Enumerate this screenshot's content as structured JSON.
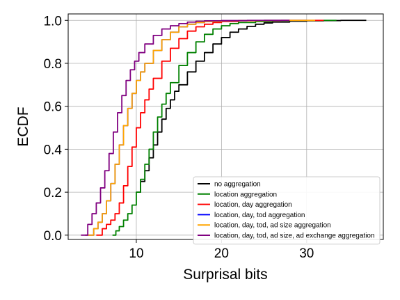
{
  "chart_data": {
    "type": "line",
    "title": "",
    "xlabel": "Surprisal bits",
    "ylabel": "ECDF",
    "xlim": [
      2,
      39
    ],
    "ylim": [
      -0.02,
      1.03
    ],
    "x_ticks": [
      10,
      20,
      30
    ],
    "y_ticks": [
      0.0,
      0.2,
      0.4,
      0.6,
      0.8,
      1.0
    ],
    "x_tick_labels": [
      "10",
      "20",
      "30"
    ],
    "y_tick_labels": [
      "0.0",
      "0.2",
      "0.4",
      "0.6",
      "0.8",
      "1.0"
    ],
    "grid": true,
    "legend_position": "lower-right",
    "series": [
      {
        "name": "no aggregation",
        "color": "#000000",
        "x": [
          10.0,
          10.5,
          11.0,
          11.5,
          12.0,
          12.5,
          13.0,
          13.5,
          14.0,
          14.5,
          15.0,
          16.0,
          17.0,
          18.0,
          19.0,
          20.0,
          21.0,
          22.0,
          23.0,
          24.0,
          25.0,
          26.0,
          28.0,
          30.0,
          32.0,
          34.0,
          36.0,
          37.0
        ],
        "y": [
          0.2,
          0.25,
          0.3,
          0.36,
          0.42,
          0.48,
          0.54,
          0.59,
          0.63,
          0.67,
          0.7,
          0.76,
          0.81,
          0.85,
          0.89,
          0.92,
          0.945,
          0.96,
          0.972,
          0.982,
          0.988,
          0.992,
          0.996,
          0.998,
          0.999,
          1.0,
          1.0,
          1.0
        ]
      },
      {
        "name": "location aggregation",
        "color": "#008000",
        "x": [
          7.2,
          7.6,
          8.0,
          8.5,
          9.0,
          9.5,
          10.0,
          10.5,
          11.0,
          11.5,
          12.0,
          12.5,
          13.0,
          13.5,
          14.0,
          15.0,
          16.0,
          17.0,
          18.0,
          19.0,
          20.0,
          21.0,
          22.0,
          24.0,
          26.0,
          28.0,
          30.0,
          32.0,
          33.5
        ],
        "y": [
          0.0,
          0.02,
          0.04,
          0.07,
          0.1,
          0.14,
          0.2,
          0.26,
          0.33,
          0.4,
          0.48,
          0.55,
          0.61,
          0.66,
          0.71,
          0.79,
          0.85,
          0.9,
          0.935,
          0.96,
          0.975,
          0.985,
          0.99,
          0.995,
          0.998,
          0.999,
          0.9995,
          1.0,
          1.0
        ]
      },
      {
        "name": "location, day aggregation",
        "color": "#ff0000",
        "x": [
          5.3,
          6.0,
          6.5,
          7.0,
          7.5,
          8.0,
          8.5,
          9.0,
          9.5,
          10.0,
          10.5,
          11.0,
          11.5,
          12.0,
          13.0,
          14.0,
          15.0,
          16.0,
          17.0,
          18.0,
          19.0,
          20.0,
          22.0,
          24.0,
          27.0,
          30.0,
          32.0
        ],
        "y": [
          0.0,
          0.03,
          0.05,
          0.07,
          0.1,
          0.15,
          0.23,
          0.32,
          0.41,
          0.5,
          0.57,
          0.63,
          0.68,
          0.73,
          0.81,
          0.87,
          0.915,
          0.95,
          0.97,
          0.982,
          0.99,
          0.995,
          0.998,
          0.999,
          1.0,
          1.0,
          1.0
        ]
      },
      {
        "name": "location, day, tod aggregation",
        "color": "#0000ff",
        "x": [
          4.0,
          5.0,
          5.5,
          6.0,
          6.5,
          7.0,
          7.5,
          8.0,
          8.5,
          9.0,
          9.5,
          10.0,
          10.5,
          11.0,
          12.0,
          13.0,
          14.0,
          15.0,
          16.0,
          17.0,
          18.0,
          20.0,
          22.0,
          25.0,
          28.0,
          30.0
        ],
        "y": [
          0.0,
          0.03,
          0.06,
          0.1,
          0.16,
          0.24,
          0.33,
          0.42,
          0.51,
          0.59,
          0.66,
          0.72,
          0.76,
          0.8,
          0.86,
          0.91,
          0.945,
          0.97,
          0.982,
          0.99,
          0.995,
          0.998,
          0.999,
          1.0,
          1.0,
          1.0
        ]
      },
      {
        "name": "location, day, tod, ad size aggregation",
        "color": "#ffa500",
        "x": [
          4.0,
          5.0,
          5.5,
          6.0,
          6.5,
          7.0,
          7.5,
          8.0,
          8.5,
          9.0,
          9.5,
          10.0,
          10.5,
          11.0,
          12.0,
          13.0,
          14.0,
          15.0,
          16.0,
          17.0,
          18.0,
          20.0,
          22.0,
          25.0,
          28.0,
          31.0
        ],
        "y": [
          0.0,
          0.03,
          0.06,
          0.1,
          0.16,
          0.24,
          0.33,
          0.42,
          0.51,
          0.59,
          0.66,
          0.72,
          0.76,
          0.8,
          0.86,
          0.91,
          0.945,
          0.97,
          0.982,
          0.99,
          0.995,
          0.998,
          0.999,
          1.0,
          1.0,
          1.0
        ]
      },
      {
        "name": "location, day, tod, ad size, ad exchange aggregation",
        "color": "#800080",
        "x": [
          3.5,
          4.3,
          4.8,
          5.3,
          5.8,
          6.3,
          6.8,
          7.3,
          7.8,
          8.3,
          8.8,
          9.3,
          9.8,
          10.3,
          11.0,
          12.0,
          13.0,
          14.0,
          15.0,
          16.0,
          17.0,
          18.0,
          20.0,
          23.0,
          26.0,
          28.0
        ],
        "y": [
          0.0,
          0.05,
          0.1,
          0.15,
          0.22,
          0.3,
          0.38,
          0.48,
          0.57,
          0.65,
          0.72,
          0.77,
          0.81,
          0.85,
          0.89,
          0.93,
          0.96,
          0.975,
          0.985,
          0.992,
          0.996,
          0.998,
          0.999,
          1.0,
          1.0,
          1.0
        ]
      }
    ]
  }
}
